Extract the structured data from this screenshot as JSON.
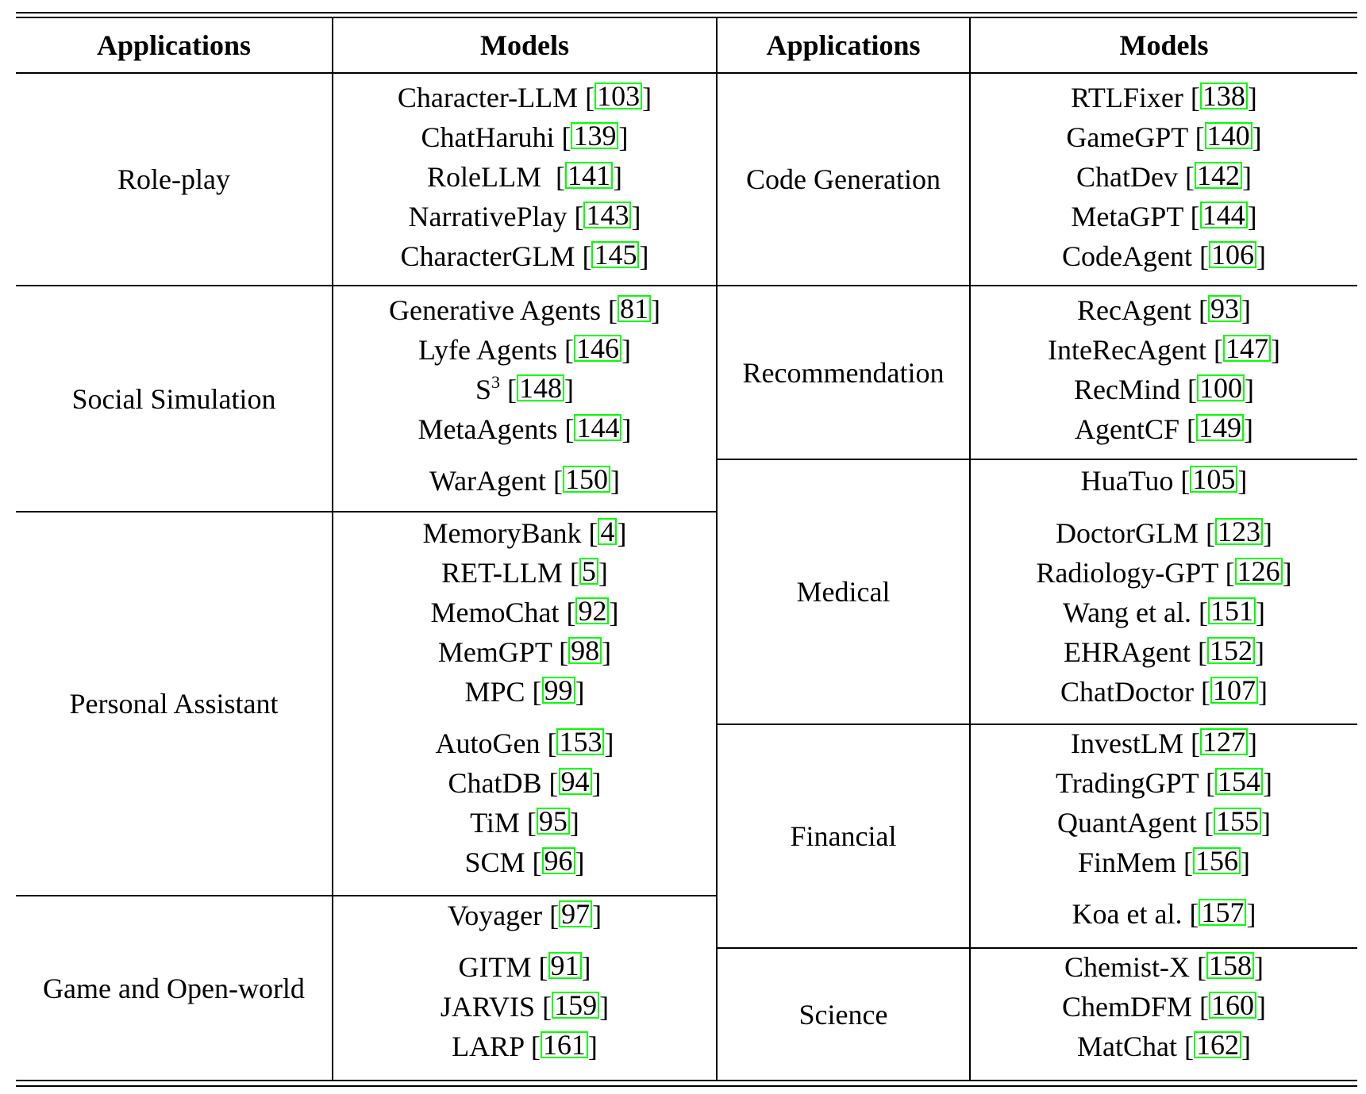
{
  "headers": [
    "Applications",
    "Models",
    "Applications",
    "Models"
  ],
  "left": [
    {
      "application": "Role-play",
      "models": [
        {
          "name": "Character-LLM",
          "ref": "103"
        },
        {
          "name": "ChatHaruhi",
          "ref": "139"
        },
        {
          "name": "RoleLLM ",
          "ref": "141"
        },
        {
          "name": "NarrativePlay",
          "ref": "143"
        },
        {
          "name": "CharacterGLM",
          "ref": "145"
        }
      ]
    },
    {
      "application": "Social Simulation",
      "models": [
        {
          "name": "Generative Agents",
          "ref": "81"
        },
        {
          "name": "Lyfe Agents",
          "ref": "146"
        },
        {
          "name": "S",
          "sup": "3",
          "ref": "148"
        },
        {
          "name": "MetaAgents",
          "ref": "144"
        },
        {
          "name": "WarAgent",
          "ref": "150"
        }
      ]
    },
    {
      "application": "Personal Assistant",
      "models": [
        {
          "name": "MemoryBank",
          "ref": "4"
        },
        {
          "name": "RET-LLM",
          "ref": "5"
        },
        {
          "name": "MemoChat",
          "ref": "92"
        },
        {
          "name": "MemGPT",
          "ref": "98"
        },
        {
          "name": "MPC",
          "ref": "99"
        },
        {
          "name": "AutoGen",
          "ref": "153"
        },
        {
          "name": "ChatDB",
          "ref": "94"
        },
        {
          "name": "TiM",
          "ref": "95"
        },
        {
          "name": "SCM",
          "ref": "96"
        }
      ]
    },
    {
      "application": "Game and Open-world",
      "models": [
        {
          "name": "Voyager",
          "ref": "97"
        },
        {
          "name": "GITM",
          "ref": "91"
        },
        {
          "name": "JARVIS",
          "ref": "159"
        },
        {
          "name": "LARP",
          "ref": "161"
        }
      ]
    }
  ],
  "right": [
    {
      "application": "Code Generation",
      "models": [
        {
          "name": "RTLFixer",
          "ref": "138"
        },
        {
          "name": "GameGPT",
          "ref": "140"
        },
        {
          "name": "ChatDev",
          "ref": "142"
        },
        {
          "name": "MetaGPT",
          "ref": "144"
        },
        {
          "name": "CodeAgent",
          "ref": "106"
        }
      ]
    },
    {
      "application": "Recommendation",
      "models": [
        {
          "name": "RecAgent",
          "ref": "93"
        },
        {
          "name": "InteRecAgent",
          "ref": "147"
        },
        {
          "name": "RecMind",
          "ref": "100"
        },
        {
          "name": "AgentCF",
          "ref": "149"
        }
      ]
    },
    {
      "application": "Medical",
      "models": [
        {
          "name": "HuaTuo",
          "ref": "105"
        },
        {
          "name": "DoctorGLM",
          "ref": "123"
        },
        {
          "name": "Radiology-GPT",
          "ref": "126"
        },
        {
          "name": "Wang et al.",
          "ref": "151"
        },
        {
          "name": "EHRAgent",
          "ref": "152"
        },
        {
          "name": "ChatDoctor",
          "ref": "107"
        }
      ]
    },
    {
      "application": "Financial",
      "models": [
        {
          "name": "InvestLM",
          "ref": "127"
        },
        {
          "name": "TradingGPT",
          "ref": "154"
        },
        {
          "name": "QuantAgent",
          "ref": "155"
        },
        {
          "name": "FinMem",
          "ref": "156"
        },
        {
          "name": "Koa et al.",
          "ref": "157"
        }
      ]
    },
    {
      "application": "Science",
      "models": [
        {
          "name": "Chemist-X",
          "ref": "158"
        },
        {
          "name": "ChemDFM",
          "ref": "160"
        },
        {
          "name": "MatChat",
          "ref": "162"
        }
      ]
    }
  ],
  "colors": {
    "ref_border": "#00ff00",
    "lines": "#000000"
  }
}
